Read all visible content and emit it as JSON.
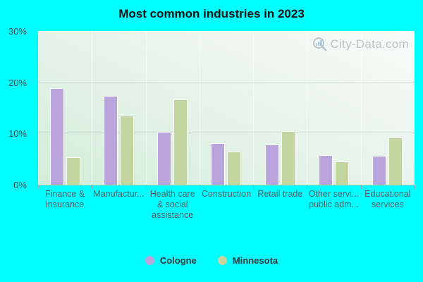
{
  "title": "Most common industries in 2023",
  "watermark": {
    "text": "City-Data.com"
  },
  "y_axis": {
    "ticks": [
      "30%",
      "20%",
      "10%",
      "0%"
    ]
  },
  "x_axis": {
    "label_lines": [
      [
        "Finance &",
        "insurance"
      ],
      [
        "Manufactur..."
      ],
      [
        "Health care",
        "& social",
        "assistance"
      ],
      [
        "Construction"
      ],
      [
        "Retail trade"
      ],
      [
        "Other servi...",
        "public adm..."
      ],
      [
        "Educational",
        "services"
      ]
    ]
  },
  "chart_data": {
    "type": "bar",
    "title": "Most common industries in 2023",
    "categories": [
      "Finance & insurance",
      "Manufactur...",
      "Health care & social assistance",
      "Construction",
      "Retail trade",
      "Other servi... public adm...",
      "Educational services"
    ],
    "series": [
      {
        "name": "Cologne",
        "color": "#b9a5dc",
        "values": [
          18.8,
          17.4,
          10.3,
          8.1,
          7.8,
          5.8,
          5.6
        ]
      },
      {
        "name": "Minnesota",
        "color": "#c3d6a0",
        "values": [
          5.4,
          13.5,
          16.7,
          6.5,
          10.4,
          4.6,
          9.2
        ]
      }
    ],
    "ylabel": "",
    "xlabel": "",
    "ylim": [
      0,
      30
    ],
    "ytick_step": 10,
    "grid": "horizontal",
    "legend_position": "bottom",
    "background": "#00ffff",
    "plot_gradient": [
      "#f8fcfa",
      "#d3edd9"
    ]
  },
  "colors": {
    "page_background": "#00ffff",
    "cologne": "#b9a5dc",
    "minnesota": "#c3d6a0",
    "gridline": "#a0aca6",
    "axis_text": "#3f4c4c",
    "category_text": "#4d5f63"
  }
}
